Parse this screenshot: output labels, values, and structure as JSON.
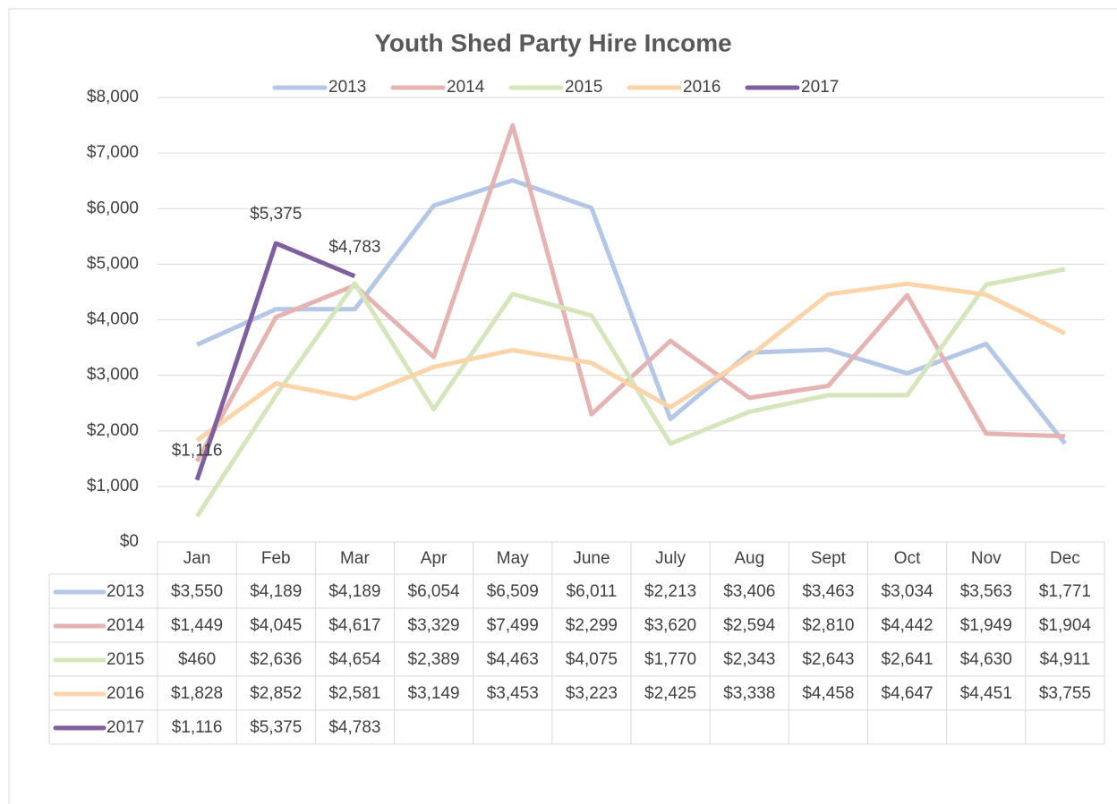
{
  "chart_data": {
    "type": "line",
    "title": "Youth Shed Party Hire Income",
    "categories": [
      "Jan",
      "Feb",
      "Mar",
      "Apr",
      "May",
      "June",
      "July",
      "Aug",
      "Sept",
      "Oct",
      "Nov",
      "Dec"
    ],
    "ylim": [
      0,
      8000
    ],
    "yticks": [
      {
        "value": 0,
        "label": "$0"
      },
      {
        "value": 1000,
        "label": "$1,000"
      },
      {
        "value": 2000,
        "label": "$2,000"
      },
      {
        "value": 3000,
        "label": "$3,000"
      },
      {
        "value": 4000,
        "label": "$4,000"
      },
      {
        "value": 5000,
        "label": "$5,000"
      },
      {
        "value": 6000,
        "label": "$6,000"
      },
      {
        "value": 7000,
        "label": "$7,000"
      },
      {
        "value": 8000,
        "label": "$8,000"
      }
    ],
    "grid": true,
    "legend": "top",
    "data_table": true,
    "series": [
      {
        "name": "2013",
        "color": "#b4c7e7",
        "values": [
          3550,
          4189,
          4189,
          6054,
          6509,
          6011,
          2213,
          3406,
          3463,
          3034,
          3563,
          1771
        ],
        "value_labels": [
          "$3,550",
          "$4,189",
          "$4,189",
          "$6,054",
          "$6,509",
          "$6,011",
          "$2,213",
          "$3,406",
          "$3,463",
          "$3,034",
          "$3,563",
          "$1,771"
        ]
      },
      {
        "name": "2014",
        "color": "#e6b3b3",
        "values": [
          1449,
          4045,
          4617,
          3329,
          7499,
          2299,
          3620,
          2594,
          2810,
          4442,
          1949,
          1904
        ],
        "value_labels": [
          "$1,449",
          "$4,045",
          "$4,617",
          "$3,329",
          "$7,499",
          "$2,299",
          "$3,620",
          "$2,594",
          "$2,810",
          "$4,442",
          "$1,949",
          "$1,904"
        ]
      },
      {
        "name": "2015",
        "color": "#d6e6bc",
        "values": [
          460,
          2636,
          4654,
          2389,
          4463,
          4075,
          1770,
          2343,
          2643,
          2641,
          4630,
          4911
        ],
        "value_labels": [
          "$460",
          "$2,636",
          "$4,654",
          "$2,389",
          "$4,463",
          "$4,075",
          "$1,770",
          "$2,343",
          "$2,643",
          "$2,641",
          "$4,630",
          "$4,911"
        ]
      },
      {
        "name": "2016",
        "color": "#fbd4aa",
        "values": [
          1828,
          2852,
          2581,
          3149,
          3453,
          3223,
          2425,
          3338,
          4458,
          4647,
          4451,
          3755
        ],
        "value_labels": [
          "$1,828",
          "$2,852",
          "$2,581",
          "$3,149",
          "$3,453",
          "$3,223",
          "$2,425",
          "$3,338",
          "$4,458",
          "$4,647",
          "$4,451",
          "$3,755"
        ]
      },
      {
        "name": "2017",
        "color": "#7f5f9e",
        "data_labels": true,
        "values": [
          1116,
          5375,
          4783,
          null,
          null,
          null,
          null,
          null,
          null,
          null,
          null,
          null
        ],
        "value_labels": [
          "$1,116",
          "$5,375",
          "$4,783",
          null,
          null,
          null,
          null,
          null,
          null,
          null,
          null,
          null
        ]
      }
    ]
  }
}
